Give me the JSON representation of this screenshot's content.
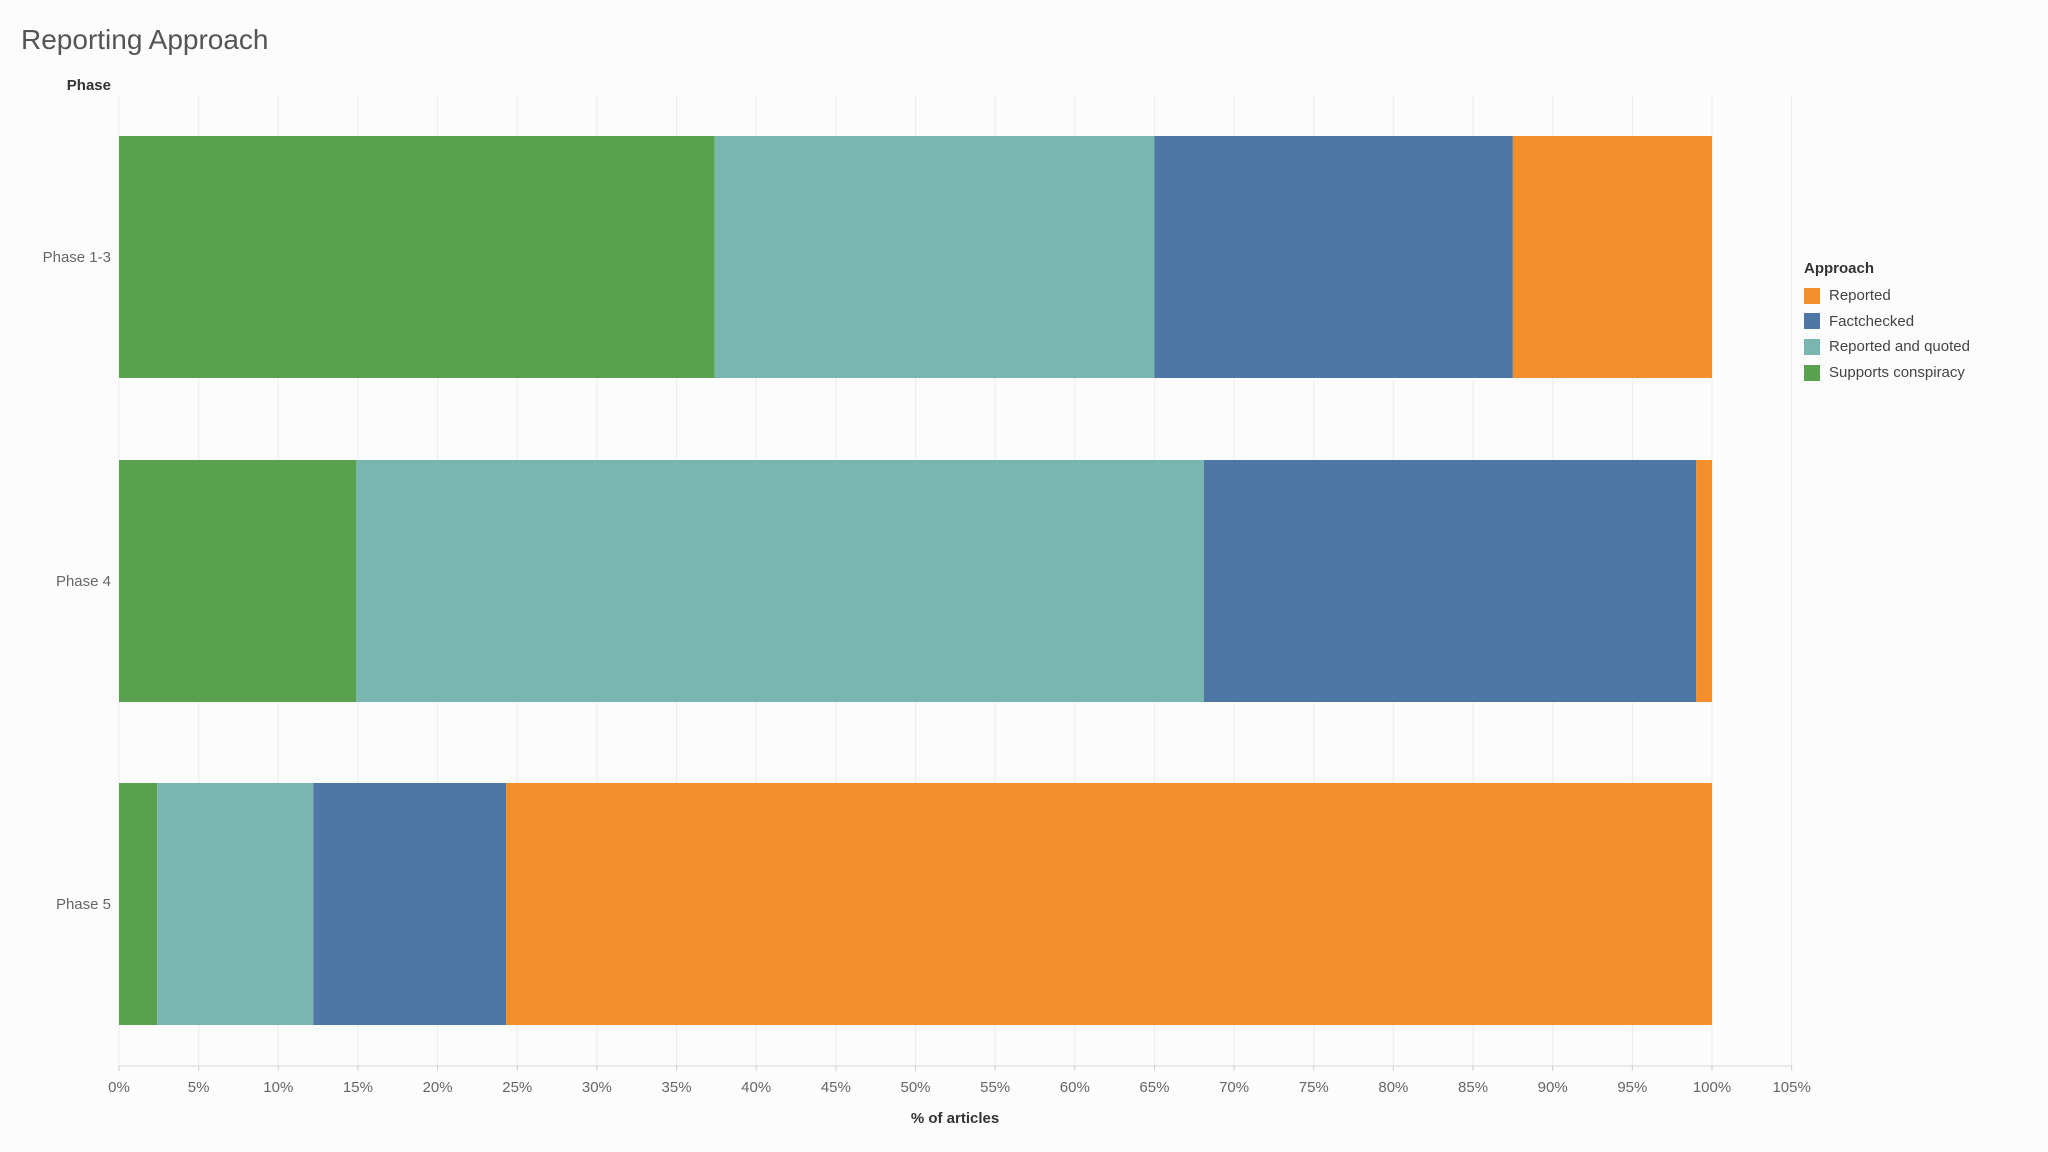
{
  "chart_data": {
    "type": "bar",
    "orientation": "horizontal",
    "stacked": true,
    "title": "Reporting Approach",
    "row_header": "Phase",
    "xlabel": "% of articles",
    "xlim": [
      0,
      105
    ],
    "x_ticks": [
      "0%",
      "5%",
      "10%",
      "15%",
      "20%",
      "25%",
      "30%",
      "35%",
      "40%",
      "45%",
      "50%",
      "55%",
      "60%",
      "65%",
      "70%",
      "75%",
      "80%",
      "85%",
      "90%",
      "95%",
      "100%",
      "105%"
    ],
    "grid": true,
    "categories": [
      "Phase 1-3",
      "Phase 4",
      "Phase 5"
    ],
    "series": [
      {
        "name": "Supports conspiracy",
        "color": "#59a14f",
        "values": [
          37.4,
          14.9,
          2.4
        ]
      },
      {
        "name": "Reported and quoted",
        "color": "#79b6b0",
        "values": [
          27.6,
          53.2,
          9.8
        ]
      },
      {
        "name": "Factchecked",
        "color": "#4e77a5",
        "values": [
          22.5,
          30.9,
          12.1
        ]
      },
      {
        "name": "Reported",
        "color": "#f28e2c",
        "values": [
          12.5,
          1.0,
          75.7
        ]
      }
    ],
    "legend": {
      "title": "Approach",
      "placement": "right",
      "order": [
        "Reported",
        "Factchecked",
        "Reported and quoted",
        "Supports conspiracy"
      ]
    }
  }
}
